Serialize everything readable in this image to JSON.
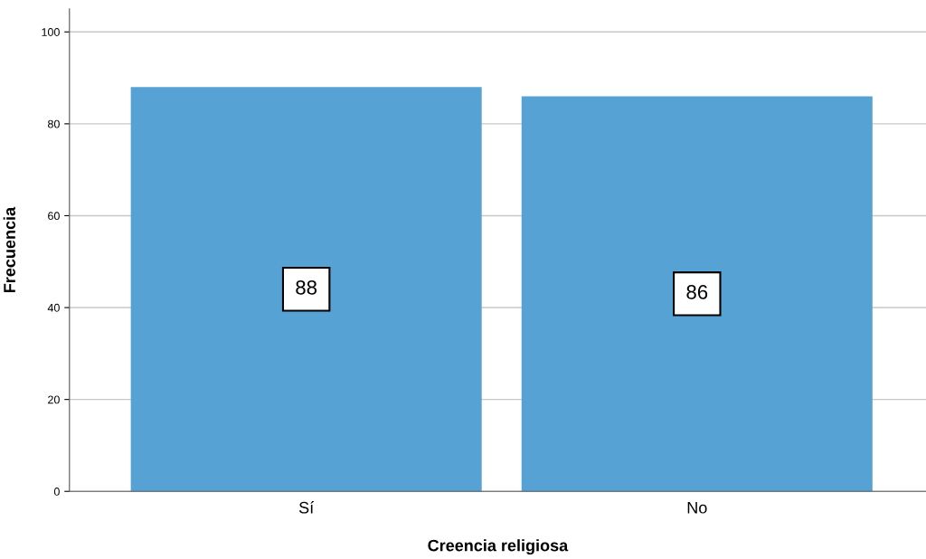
{
  "chart_data": {
    "type": "bar",
    "xlabel": "Creencia religiosa",
    "ylabel": "Frecuencia",
    "categories": [
      "Sí",
      "No"
    ],
    "values": [
      88,
      86
    ],
    "color": "#56a2d4",
    "ylim": [
      0,
      105
    ],
    "yticks": [
      0,
      20,
      40,
      60,
      80,
      100
    ],
    "grid": "y",
    "data_labels": true
  }
}
